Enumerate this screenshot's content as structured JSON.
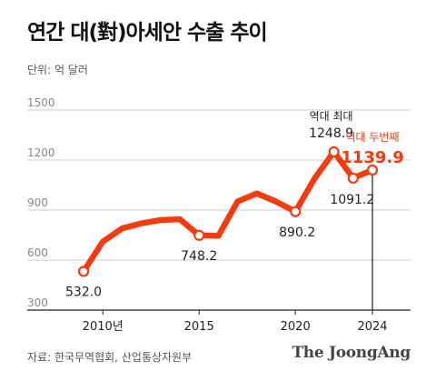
{
  "title": "연간 대(對)아세안 수출 추이",
  "unit_label": "단위: 억 달러",
  "source": "자료: 한국무역협회, 산업통상자원부",
  "logo": "The JoongAng",
  "colors": {
    "line": "#f23c0f",
    "highlight_text": "#f23c0f",
    "grid": "#cccccc",
    "axis": "#222222",
    "label": "#222222"
  },
  "chart_data": {
    "type": "line",
    "title": "연간 대(對)아세안 수출 추이",
    "ylabel": "단위: 억 달러",
    "ylim": [
      300,
      1500
    ],
    "yticks": [
      300,
      600,
      900,
      1200,
      1500
    ],
    "grid": true,
    "x_tick_labels": [
      {
        "x": 2010,
        "label": "2010년"
      },
      {
        "x": 2015,
        "label": "2015"
      },
      {
        "x": 2020,
        "label": "2020"
      },
      {
        "x": 2024,
        "label": "2024"
      }
    ],
    "series": [
      {
        "x": [
          2009,
          2010,
          2011,
          2012,
          2013,
          2014,
          2015,
          2016,
          2017,
          2018,
          2019,
          2020,
          2021,
          2022,
          2023,
          2024
        ],
        "values": [
          532.0,
          710,
          790,
          820,
          840,
          845,
          748.2,
          745,
          952,
          1000,
          951,
          890.2,
          1090,
          1248.9,
          1091.2,
          1139.9
        ]
      }
    ],
    "annotations": [
      {
        "x": 2009,
        "value": "532.0",
        "highlight": false
      },
      {
        "x": 2015,
        "value": "748.2",
        "highlight": false
      },
      {
        "x": 2020,
        "value": "890.2",
        "highlight": false
      },
      {
        "x": 2022,
        "note": "역대 최대",
        "value": "1248.9",
        "highlight": false
      },
      {
        "x": 2023,
        "value": "1091.2",
        "highlight": false
      },
      {
        "x": 2024,
        "note": "역대 두번째",
        "value": "1139.9",
        "highlight": true
      }
    ]
  }
}
